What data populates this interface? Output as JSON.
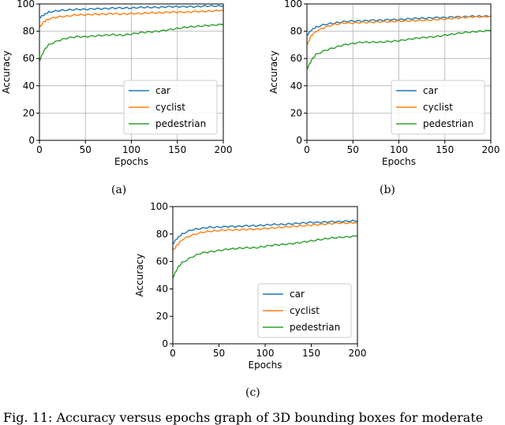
{
  "figure": {
    "caption": "Fig. 11: Accuracy versus epochs graph of 3D bounding boxes for moderate",
    "subfigure_labels": [
      "(a)",
      "(b)",
      "(c)"
    ]
  },
  "colors": {
    "car": "#1f77b4",
    "cyclist": "#ff7f0e",
    "pedestrian": "#2ca02c"
  },
  "chart_data": [
    {
      "type": "line",
      "xlabel": "Epochs",
      "ylabel": "Accuracy",
      "xlim": [
        0,
        200
      ],
      "ylim": [
        0,
        100
      ],
      "xticks": [
        0,
        50,
        100,
        150,
        200
      ],
      "yticks": [
        0,
        20,
        40,
        60,
        80,
        100
      ],
      "grid": true,
      "legend_position": "lower-right",
      "x": [
        0,
        5,
        10,
        20,
        30,
        40,
        50,
        60,
        70,
        80,
        90,
        100,
        110,
        120,
        130,
        140,
        150,
        160,
        170,
        180,
        190,
        200
      ],
      "series": [
        {
          "name": "car",
          "values": [
            90,
            92,
            94,
            95,
            95.5,
            96,
            96,
            96.5,
            96.5,
            97,
            97,
            97,
            97.5,
            97.5,
            97.5,
            98,
            98,
            98,
            98,
            98.5,
            98.5,
            98.5
          ]
        },
        {
          "name": "cyclist",
          "values": [
            83,
            87,
            89,
            90.5,
            91,
            92,
            92,
            92.5,
            92.5,
            93,
            92.5,
            93,
            93,
            93.5,
            93.5,
            94,
            94,
            94,
            94.5,
            94.5,
            95,
            95.5
          ]
        },
        {
          "name": "pedestrian",
          "values": [
            58,
            66,
            70,
            73,
            75,
            76,
            76,
            76.5,
            77,
            77.5,
            77,
            78,
            79,
            79.5,
            80,
            81,
            82,
            83,
            83.5,
            84,
            84.5,
            85
          ]
        }
      ]
    },
    {
      "type": "line",
      "xlabel": "Epochs",
      "ylabel": "Accuracy",
      "xlim": [
        0,
        200
      ],
      "ylim": [
        0,
        100
      ],
      "xticks": [
        0,
        50,
        100,
        150,
        200
      ],
      "yticks": [
        0,
        20,
        40,
        60,
        80,
        100
      ],
      "grid": true,
      "legend_position": "lower-right",
      "x": [
        0,
        5,
        10,
        20,
        30,
        40,
        50,
        60,
        70,
        80,
        90,
        100,
        110,
        120,
        130,
        140,
        150,
        160,
        170,
        180,
        190,
        200
      ],
      "series": [
        {
          "name": "car",
          "values": [
            77,
            81,
            83,
            85,
            86,
            87,
            87.5,
            87.5,
            88,
            88,
            88.5,
            88.5,
            89,
            89.5,
            89.5,
            90,
            90,
            90.5,
            90.5,
            91,
            91,
            91
          ]
        },
        {
          "name": "cyclist",
          "values": [
            70,
            77,
            80,
            83,
            85,
            86,
            86,
            86.5,
            86.5,
            87,
            87,
            87.5,
            87.5,
            88,
            88,
            88.5,
            89,
            89.5,
            90,
            90.5,
            90.5,
            91
          ]
        },
        {
          "name": "pedestrian",
          "values": [
            52,
            59,
            63,
            66,
            68,
            70,
            71,
            72,
            72,
            72,
            72.5,
            73,
            74,
            75,
            75.5,
            76,
            77,
            78,
            79,
            79.5,
            80,
            80.5
          ]
        }
      ]
    },
    {
      "type": "line",
      "xlabel": "Epochs",
      "ylabel": "Accuracy",
      "xlim": [
        0,
        200
      ],
      "ylim": [
        0,
        100
      ],
      "xticks": [
        0,
        50,
        100,
        150,
        200
      ],
      "yticks": [
        0,
        20,
        40,
        60,
        80,
        100
      ],
      "grid": false,
      "legend_position": "lower-right",
      "x": [
        0,
        5,
        10,
        20,
        30,
        40,
        50,
        60,
        70,
        80,
        90,
        100,
        110,
        120,
        130,
        140,
        150,
        160,
        170,
        180,
        190,
        200
      ],
      "series": [
        {
          "name": "car",
          "values": [
            73,
            77,
            80,
            83,
            84,
            85,
            85,
            85.5,
            85.5,
            86,
            86,
            86.5,
            87,
            87,
            87.5,
            88,
            88.5,
            88.5,
            89,
            89,
            89.5,
            89.5
          ]
        },
        {
          "name": "cyclist",
          "values": [
            68,
            72,
            76,
            79,
            81,
            82,
            82.5,
            83,
            83,
            83.5,
            83.5,
            84,
            84.5,
            85,
            85.5,
            86,
            86.5,
            87,
            87.5,
            88,
            88,
            88.5
          ]
        },
        {
          "name": "pedestrian",
          "values": [
            48,
            55,
            59,
            63,
            66,
            67,
            68,
            69,
            69.5,
            70,
            70,
            71,
            72,
            72.5,
            73,
            74,
            75,
            76,
            77,
            77.5,
            78,
            78.5
          ]
        }
      ]
    }
  ]
}
